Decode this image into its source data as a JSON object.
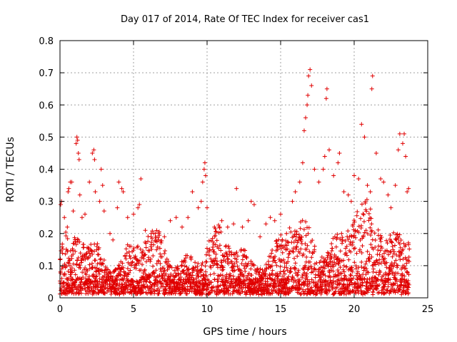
{
  "chart_data": {
    "type": "scatter",
    "title": "Day 017 of 2014, Rate Of TEC Index for receiver cas1",
    "xlabel": "GPS time / hours",
    "ylabel": "ROTI / TECUs",
    "xlim": [
      0,
      25
    ],
    "ylim": [
      0,
      0.8
    ],
    "x_ticks": [
      0,
      5,
      10,
      15,
      20,
      25
    ],
    "y_ticks": [
      0,
      0.1,
      0.2,
      0.3,
      0.4,
      0.5,
      0.6,
      0.7,
      0.8
    ],
    "x_tick_labels": [
      "0",
      "5",
      "10",
      "15",
      "20",
      "25"
    ],
    "y_tick_labels": [
      "0",
      "0.1",
      "0.2",
      "0.3",
      "0.4",
      "0.5",
      "0.6",
      "0.7",
      "0.8"
    ],
    "grid": true,
    "marker": "+",
    "color": "#e00000",
    "series": [
      {
        "name": "ROTI",
        "points": [
          [
            0.05,
            0.29
          ],
          [
            0.1,
            0.3
          ],
          [
            0.3,
            0.25
          ],
          [
            0.5,
            0.22
          ],
          [
            0.55,
            0.33
          ],
          [
            0.6,
            0.34
          ],
          [
            0.7,
            0.36
          ],
          [
            0.8,
            0.36
          ],
          [
            0.9,
            0.27
          ],
          [
            1.1,
            0.48
          ],
          [
            1.15,
            0.5
          ],
          [
            1.2,
            0.49
          ],
          [
            1.25,
            0.45
          ],
          [
            1.3,
            0.43
          ],
          [
            1.35,
            0.32
          ],
          [
            1.5,
            0.25
          ],
          [
            1.7,
            0.26
          ],
          [
            2.0,
            0.36
          ],
          [
            2.2,
            0.45
          ],
          [
            2.3,
            0.46
          ],
          [
            2.35,
            0.43
          ],
          [
            2.4,
            0.33
          ],
          [
            2.7,
            0.3
          ],
          [
            2.8,
            0.4
          ],
          [
            2.9,
            0.35
          ],
          [
            3.0,
            0.27
          ],
          [
            3.4,
            0.2
          ],
          [
            3.6,
            0.18
          ],
          [
            3.9,
            0.28
          ],
          [
            4.0,
            0.36
          ],
          [
            4.2,
            0.34
          ],
          [
            4.3,
            0.33
          ],
          [
            4.6,
            0.25
          ],
          [
            5.0,
            0.26
          ],
          [
            5.3,
            0.28
          ],
          [
            5.4,
            0.29
          ],
          [
            5.5,
            0.37
          ],
          [
            5.8,
            0.21
          ],
          [
            6.2,
            0.2
          ],
          [
            6.7,
            0.18
          ],
          [
            7.1,
            0.19
          ],
          [
            7.5,
            0.24
          ],
          [
            7.9,
            0.25
          ],
          [
            8.3,
            0.22
          ],
          [
            8.7,
            0.25
          ],
          [
            9.0,
            0.33
          ],
          [
            9.4,
            0.28
          ],
          [
            9.6,
            0.3
          ],
          [
            9.7,
            0.36
          ],
          [
            9.8,
            0.4
          ],
          [
            9.85,
            0.42
          ],
          [
            9.9,
            0.38
          ],
          [
            10.0,
            0.28
          ],
          [
            10.5,
            0.22
          ],
          [
            11.0,
            0.24
          ],
          [
            11.4,
            0.22
          ],
          [
            11.8,
            0.23
          ],
          [
            12.0,
            0.34
          ],
          [
            12.4,
            0.22
          ],
          [
            12.8,
            0.24
          ],
          [
            13.0,
            0.3
          ],
          [
            13.2,
            0.29
          ],
          [
            13.6,
            0.19
          ],
          [
            14.0,
            0.23
          ],
          [
            14.3,
            0.25
          ],
          [
            14.6,
            0.24
          ],
          [
            15.0,
            0.26
          ],
          [
            15.4,
            0.2
          ],
          [
            15.8,
            0.3
          ],
          [
            16.0,
            0.33
          ],
          [
            16.3,
            0.36
          ],
          [
            16.5,
            0.42
          ],
          [
            16.6,
            0.52
          ],
          [
            16.7,
            0.56
          ],
          [
            16.8,
            0.6
          ],
          [
            16.85,
            0.63
          ],
          [
            16.9,
            0.69
          ],
          [
            17.0,
            0.71
          ],
          [
            17.1,
            0.66
          ],
          [
            17.3,
            0.4
          ],
          [
            17.6,
            0.36
          ],
          [
            17.9,
            0.4
          ],
          [
            18.0,
            0.44
          ],
          [
            18.1,
            0.62
          ],
          [
            18.15,
            0.65
          ],
          [
            18.3,
            0.46
          ],
          [
            18.6,
            0.38
          ],
          [
            18.9,
            0.42
          ],
          [
            19.0,
            0.45
          ],
          [
            19.3,
            0.33
          ],
          [
            19.6,
            0.32
          ],
          [
            19.8,
            0.3
          ],
          [
            20.0,
            0.38
          ],
          [
            20.3,
            0.37
          ],
          [
            20.5,
            0.54
          ],
          [
            20.7,
            0.5
          ],
          [
            20.9,
            0.35
          ],
          [
            21.1,
            0.33
          ],
          [
            21.2,
            0.65
          ],
          [
            21.25,
            0.69
          ],
          [
            21.5,
            0.45
          ],
          [
            21.8,
            0.37
          ],
          [
            22.0,
            0.36
          ],
          [
            22.3,
            0.32
          ],
          [
            22.5,
            0.28
          ],
          [
            22.8,
            0.35
          ],
          [
            23.0,
            0.46
          ],
          [
            23.1,
            0.51
          ],
          [
            23.3,
            0.48
          ],
          [
            23.4,
            0.51
          ],
          [
            23.5,
            0.44
          ],
          [
            23.6,
            0.33
          ],
          [
            23.7,
            0.34
          ]
        ]
      }
    ]
  }
}
